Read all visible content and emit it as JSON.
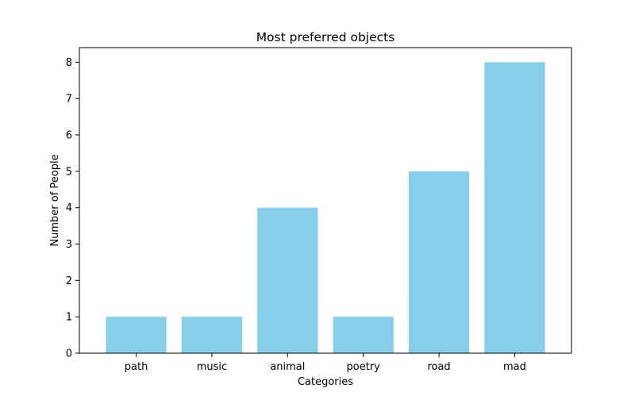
{
  "chart_data": {
    "type": "bar",
    "title": "Most preferred objects",
    "xlabel": "Categories",
    "ylabel": "Number of People",
    "categories": [
      "path",
      "music",
      "animal",
      "poetry",
      "road",
      "mad"
    ],
    "values": [
      1,
      1,
      4,
      1,
      5,
      8
    ],
    "ylim": [
      0,
      8.4
    ],
    "yticks": [
      0,
      1,
      2,
      3,
      4,
      5,
      6,
      7,
      8
    ],
    "bar_color": "#87ceeb",
    "grid": false,
    "legend": null
  }
}
